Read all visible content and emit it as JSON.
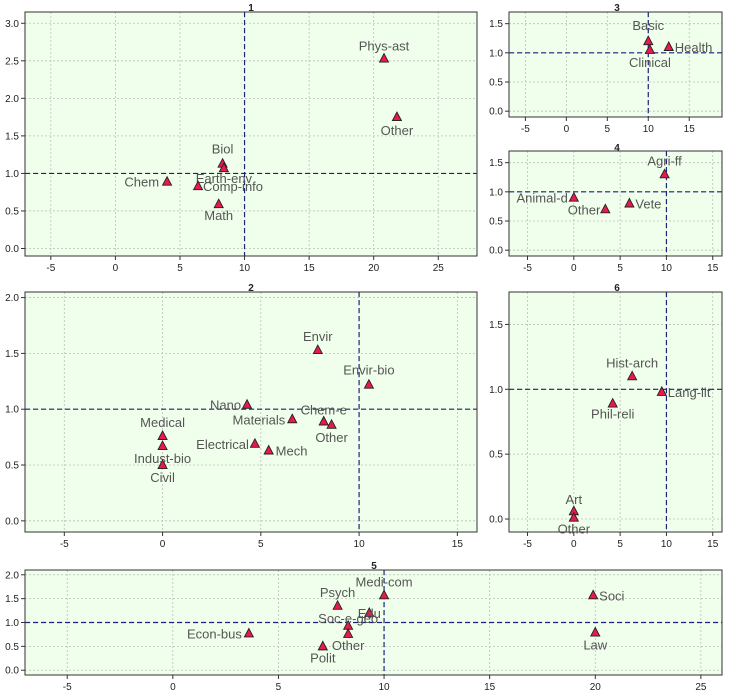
{
  "chart_data": [
    {
      "title": "1",
      "type": "scatter",
      "xlim": [
        -7,
        28
      ],
      "ylim": [
        -0.1,
        3.15
      ],
      "xticks": [
        -5,
        0,
        5,
        10,
        15,
        20,
        25
      ],
      "yticks": [
        0.0,
        0.5,
        1.0,
        1.5,
        2.0,
        2.5,
        3.0
      ],
      "hline": 1.0,
      "vline": 10,
      "grid": true,
      "points": [
        {
          "label": "Phys-ast",
          "x": 20.8,
          "y": 2.53
        },
        {
          "label": "Other",
          "x": 21.8,
          "y": 1.75
        },
        {
          "label": "Biol",
          "x": 8.3,
          "y": 1.13
        },
        {
          "label": "Earth-env",
          "x": 8.4,
          "y": 1.07
        },
        {
          "label": "Chem",
          "x": 4.0,
          "y": 0.89
        },
        {
          "label": "Comp-info",
          "x": 6.4,
          "y": 0.83
        },
        {
          "label": "Math",
          "x": 8.0,
          "y": 0.59
        }
      ]
    },
    {
      "title": "3",
      "type": "scatter",
      "xlim": [
        -7,
        19
      ],
      "ylim": [
        -0.1,
        1.7
      ],
      "xticks": [
        -5,
        0,
        5,
        10,
        15
      ],
      "yticks": [
        0.0,
        0.5,
        1.0,
        1.5
      ],
      "hline": 1.0,
      "vline": 10,
      "grid": true,
      "points": [
        {
          "label": "Basic",
          "x": 10.0,
          "y": 1.2
        },
        {
          "label": "Health",
          "x": 12.5,
          "y": 1.1
        },
        {
          "label": "Clinical",
          "x": 10.2,
          "y": 1.05
        }
      ]
    },
    {
      "title": "4",
      "type": "scatter",
      "xlim": [
        -7,
        16
      ],
      "ylim": [
        -0.1,
        1.7
      ],
      "xticks": [
        -5,
        0,
        5,
        10,
        15
      ],
      "yticks": [
        0.0,
        0.5,
        1.0,
        1.5
      ],
      "hline": 1.0,
      "vline": 10,
      "grid": true,
      "points": [
        {
          "label": "Agri-ff",
          "x": 9.8,
          "y": 1.3
        },
        {
          "label": "Animal-d",
          "x": 0.0,
          "y": 0.9
        },
        {
          "label": "Vete",
          "x": 6.0,
          "y": 0.8
        },
        {
          "label": "Other",
          "x": 3.4,
          "y": 0.7
        }
      ]
    },
    {
      "title": "2",
      "type": "scatter",
      "xlim": [
        -7,
        16
      ],
      "ylim": [
        -0.1,
        2.05
      ],
      "xticks": [
        -5,
        0,
        5,
        10,
        15
      ],
      "yticks": [
        0.0,
        0.5,
        1.0,
        1.5,
        2.0
      ],
      "hline": 1.0,
      "vline": 10,
      "grid": true,
      "points": [
        {
          "label": "Envir",
          "x": 7.9,
          "y": 1.53
        },
        {
          "label": "Envir-bio",
          "x": 10.5,
          "y": 1.22
        },
        {
          "label": "Nano",
          "x": 4.3,
          "y": 1.04
        },
        {
          "label": "Materials",
          "x": 6.6,
          "y": 0.91
        },
        {
          "label": "Chem-e",
          "x": 8.2,
          "y": 0.89
        },
        {
          "label": "Other",
          "x": 8.6,
          "y": 0.86
        },
        {
          "label": "Medical",
          "x": 0.0,
          "y": 0.76
        },
        {
          "label": "Electrical",
          "x": 4.7,
          "y": 0.69
        },
        {
          "label": "Indust-bio",
          "x": 0.0,
          "y": 0.67
        },
        {
          "label": "Mech",
          "x": 5.4,
          "y": 0.63
        },
        {
          "label": "Civil",
          "x": 0.0,
          "y": 0.5
        }
      ]
    },
    {
      "title": "6",
      "type": "scatter",
      "xlim": [
        -7,
        16
      ],
      "ylim": [
        -0.1,
        1.75
      ],
      "xticks": [
        -5,
        0,
        5,
        10,
        15
      ],
      "yticks": [
        0.0,
        0.5,
        1.0,
        1.5
      ],
      "hline": 1.0,
      "vline": 10,
      "grid": true,
      "points": [
        {
          "label": "Hist-arch",
          "x": 6.3,
          "y": 1.1
        },
        {
          "label": "Lang-lit",
          "x": 9.5,
          "y": 0.98
        },
        {
          "label": "Phil-reli",
          "x": 4.2,
          "y": 0.89
        },
        {
          "label": "Art",
          "x": 0.0,
          "y": 0.06
        },
        {
          "label": "Other",
          "x": 0.0,
          "y": 0.01
        }
      ]
    },
    {
      "title": "5",
      "type": "scatter",
      "xlim": [
        -7,
        26
      ],
      "ylim": [
        -0.1,
        2.1
      ],
      "xticks": [
        -5,
        0,
        5,
        10,
        15,
        20,
        25
      ],
      "yticks": [
        0.0,
        0.5,
        1.0,
        1.5,
        2.0
      ],
      "hline": 1.0,
      "vline": 10,
      "grid": true,
      "points": [
        {
          "label": "Medi-com",
          "x": 10.0,
          "y": 1.57
        },
        {
          "label": "Soci",
          "x": 19.9,
          "y": 1.57
        },
        {
          "label": "Psych",
          "x": 7.8,
          "y": 1.35
        },
        {
          "label": "Edu",
          "x": 9.3,
          "y": 1.2
        },
        {
          "label": "Soc-e-geo",
          "x": 8.3,
          "y": 0.93
        },
        {
          "label": "Econ-bus",
          "x": 3.6,
          "y": 0.77
        },
        {
          "label": "Law",
          "x": 20.0,
          "y": 0.79
        },
        {
          "label": "Other",
          "x": 8.3,
          "y": 0.76
        },
        {
          "label": "Polit",
          "x": 7.1,
          "y": 0.5
        }
      ]
    }
  ]
}
